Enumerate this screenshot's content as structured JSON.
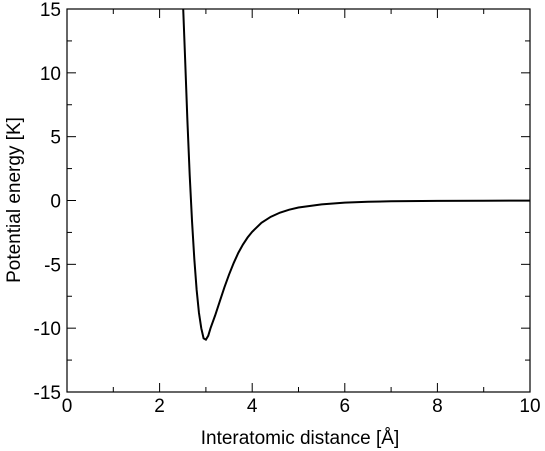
{
  "chart_data": {
    "type": "line",
    "xlabel": "Interatomic distance  [Å]",
    "ylabel": "Potential energy  [K]",
    "xlim": [
      0,
      10
    ],
    "ylim": [
      -15,
      15
    ],
    "x_ticks": [
      0,
      2,
      4,
      6,
      8,
      10
    ],
    "y_ticks": [
      -15,
      -10,
      -5,
      0,
      5,
      10,
      15
    ],
    "x_tick_labels": [
      "0",
      "2",
      "4",
      "6",
      "8",
      "10"
    ],
    "y_tick_labels": [
      "-15",
      "-10",
      "-5",
      "0",
      "5",
      "10",
      "15"
    ],
    "grid": false,
    "series": [
      {
        "x": [
          2.51,
          2.55,
          2.6,
          2.65,
          2.7,
          2.75,
          2.8,
          2.85,
          2.9,
          2.95,
          3.0,
          3.05,
          3.1,
          3.2,
          3.3,
          3.4,
          3.5,
          3.6,
          3.7,
          3.8,
          3.9,
          4.0,
          4.2,
          4.4,
          4.6,
          4.8,
          5.0,
          5.5,
          6.0,
          6.5,
          7.0,
          8.0,
          9.0,
          10.0
        ],
        "y": [
          15.0,
          11.2,
          6.3,
          2.0,
          -1.6,
          -4.6,
          -7.0,
          -8.8,
          -10.0,
          -10.8,
          -10.9,
          -10.6,
          -10.0,
          -9.0,
          -7.9,
          -6.8,
          -5.8,
          -4.9,
          -4.1,
          -3.45,
          -2.9,
          -2.45,
          -1.75,
          -1.28,
          -0.95,
          -0.72,
          -0.55,
          -0.3,
          -0.17,
          -0.1,
          -0.06,
          -0.03,
          -0.015,
          -0.008
        ]
      }
    ]
  }
}
